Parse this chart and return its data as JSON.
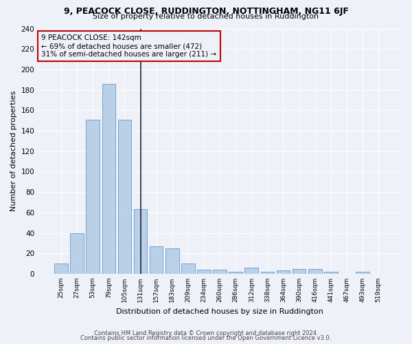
{
  "title1": "9, PEACOCK CLOSE, RUDDINGTON, NOTTINGHAM, NG11 6JF",
  "title2": "Size of property relative to detached houses in Ruddington",
  "xlabel": "Distribution of detached houses by size in Ruddington",
  "ylabel": "Number of detached properties",
  "footer1": "Contains HM Land Registry data © Crown copyright and database right 2024.",
  "footer2": "Contains public sector information licensed under the Open Government Licence v3.0.",
  "annotation_line1": "9 PEACOCK CLOSE: 142sqm",
  "annotation_line2": "← 69% of detached houses are smaller (472)",
  "annotation_line3": "31% of semi-detached houses are larger (211) →",
  "bar_color": "#b8d0e8",
  "bar_edge_color": "#6699cc",
  "vline_color": "#222222",
  "annotation_box_edgecolor": "#cc0000",
  "background_color": "#eef2f8",
  "grid_color": "#ffffff",
  "tick_labels": [
    "25sqm",
    "27sqm",
    "53sqm",
    "79sqm",
    "105sqm",
    "131sqm",
    "157sqm",
    "183sqm",
    "209sqm",
    "234sqm",
    "260sqm",
    "286sqm",
    "312sqm",
    "338sqm",
    "364sqm",
    "390sqm",
    "416sqm",
    "441sqm",
    "467sqm",
    "493sqm",
    "519sqm"
  ],
  "values": [
    10,
    40,
    151,
    186,
    151,
    63,
    27,
    25,
    10,
    4,
    4,
    2,
    6,
    2,
    3,
    5,
    5,
    2,
    0,
    2,
    0
  ],
  "vline_bar_index": 5,
  "ylim": [
    0,
    240
  ],
  "yticks": [
    0,
    20,
    40,
    60,
    80,
    100,
    120,
    140,
    160,
    180,
    200,
    220,
    240
  ],
  "title1_fontsize": 9,
  "title2_fontsize": 8,
  "ylabel_fontsize": 8,
  "xlabel_fontsize": 8,
  "footer_fontsize": 6,
  "annot_fontsize": 7.5
}
